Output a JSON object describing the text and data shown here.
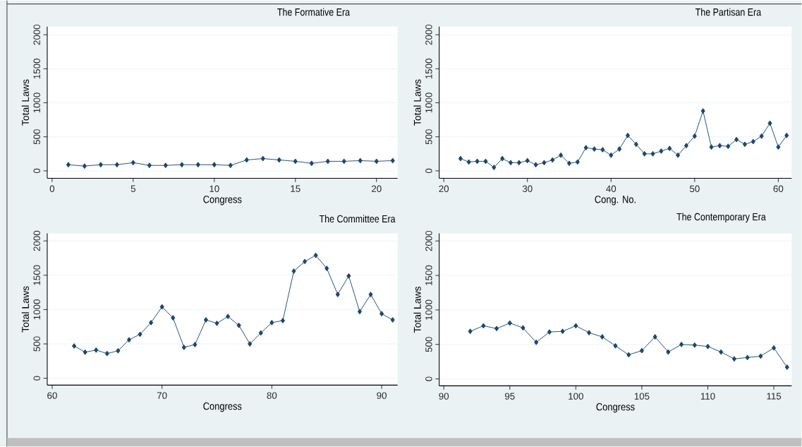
{
  "chart_data": [
    {
      "type": "line",
      "title": "The Formative Era",
      "xlabel": "Congress",
      "ylabel": "Total Laws",
      "color": "#1a476f",
      "marker": "diamond",
      "grid": "y",
      "x": [
        1,
        2,
        3,
        4,
        5,
        6,
        7,
        8,
        9,
        10,
        11,
        12,
        13,
        14,
        15,
        16,
        17,
        18,
        19,
        20,
        21
      ],
      "values": [
        90,
        70,
        90,
        90,
        120,
        80,
        80,
        90,
        90,
        90,
        80,
        160,
        180,
        160,
        140,
        110,
        140,
        140,
        150,
        140,
        150
      ],
      "xlim": [
        -0.3,
        21.3
      ],
      "ylim": [
        -110,
        2120
      ],
      "xticks": [
        0,
        5,
        10,
        15,
        20
      ],
      "yticks": [
        0,
        500,
        1000,
        1500,
        2000
      ]
    },
    {
      "type": "line",
      "title": "The Partisan Era",
      "xlabel": "Cong. No.",
      "ylabel": "Total Laws",
      "color": "#1a476f",
      "marker": "diamond",
      "grid": "y",
      "x": [
        22,
        23,
        24,
        25,
        26,
        27,
        28,
        29,
        30,
        31,
        32,
        33,
        34,
        35,
        36,
        37,
        38,
        39,
        40,
        41,
        42,
        43,
        44,
        45,
        46,
        47,
        48,
        49,
        50,
        51,
        52,
        53,
        54,
        55,
        56,
        57,
        58,
        59,
        60,
        61
      ],
      "values": [
        180,
        130,
        140,
        140,
        50,
        180,
        120,
        120,
        150,
        90,
        120,
        160,
        230,
        110,
        130,
        340,
        320,
        310,
        230,
        320,
        520,
        390,
        250,
        250,
        290,
        330,
        230,
        370,
        510,
        880,
        350,
        370,
        360,
        460,
        390,
        430,
        510,
        700,
        350,
        520
      ],
      "xlim": [
        19.45,
        61.6
      ],
      "ylim": [
        -110,
        2120
      ],
      "xticks": [
        20,
        30,
        40,
        50,
        60
      ],
      "yticks": [
        0,
        500,
        1000,
        1500,
        2000
      ]
    },
    {
      "type": "line",
      "title": "The Committee Era",
      "xlabel": "Congress",
      "ylabel": "Total Laws",
      "color": "#1a476f",
      "marker": "diamond",
      "grid": "y",
      "x": [
        62,
        63,
        64,
        65,
        66,
        67,
        68,
        69,
        70,
        71,
        72,
        73,
        74,
        75,
        76,
        77,
        78,
        79,
        80,
        81,
        82,
        83,
        84,
        85,
        86,
        87,
        88,
        89,
        90,
        91
      ],
      "values": [
        470,
        380,
        410,
        360,
        400,
        560,
        640,
        810,
        1040,
        880,
        450,
        490,
        850,
        800,
        900,
        770,
        500,
        660,
        810,
        840,
        1560,
        1700,
        1790,
        1600,
        1220,
        1490,
        970,
        1220,
        940,
        850
      ],
      "xlim": [
        59.55,
        91.45
      ],
      "ylim": [
        -100,
        2110
      ],
      "xticks": [
        60,
        70,
        80,
        90
      ],
      "yticks": [
        0,
        500,
        1000,
        1500,
        2000
      ]
    },
    {
      "type": "line",
      "title": "The Contemporary Era",
      "xlabel": "Congress",
      "ylabel": "Total Laws",
      "color": "#1a476f",
      "marker": "diamond",
      "grid": "y",
      "x": [
        92,
        93,
        94,
        95,
        96,
        97,
        98,
        99,
        100,
        101,
        102,
        103,
        104,
        105,
        106,
        107,
        108,
        109,
        110,
        111,
        112,
        113,
        114,
        115,
        116
      ],
      "values": [
        690,
        770,
        730,
        810,
        740,
        530,
        680,
        690,
        770,
        670,
        610,
        480,
        350,
        410,
        610,
        390,
        500,
        490,
        470,
        390,
        290,
        310,
        330,
        450,
        170
      ],
      "xlim": [
        89.65,
        116.35
      ],
      "ylim": [
        -100,
        2110
      ],
      "xticks": [
        90,
        95,
        100,
        105,
        110,
        115
      ],
      "yticks": [
        0,
        500,
        1000,
        1500,
        2000
      ]
    }
  ]
}
